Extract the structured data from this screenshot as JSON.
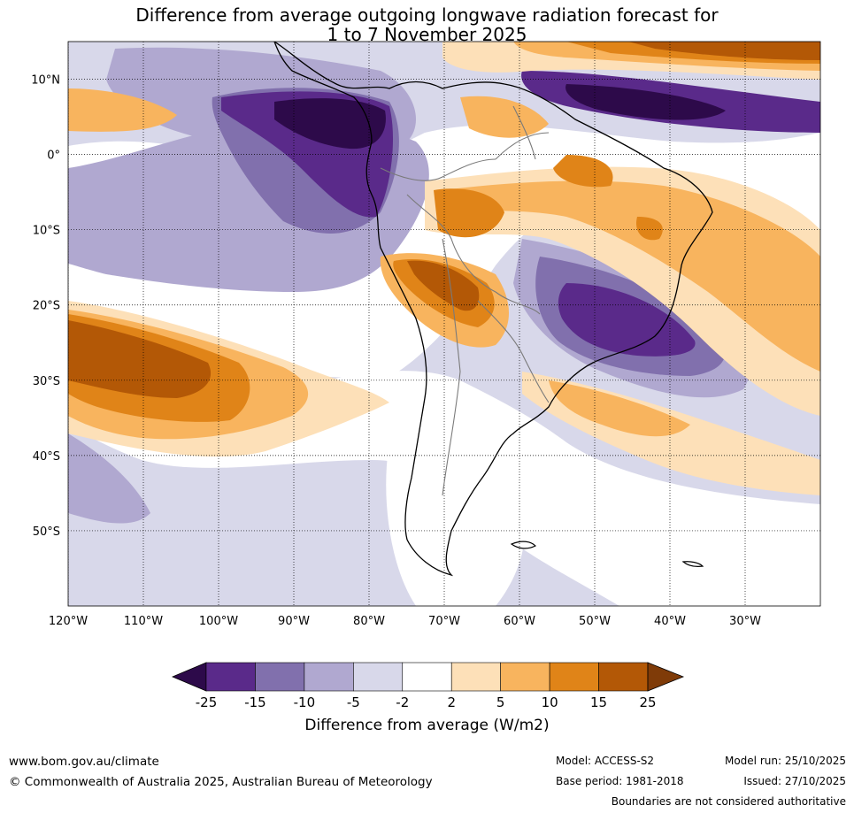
{
  "title": {
    "line1": "Difference from average outgoing longwave radiation forecast for",
    "line2": "1 to 7 November 2025"
  },
  "map": {
    "lat_labels": [
      "10°N",
      "0°",
      "10°S",
      "20°S",
      "30°S",
      "40°S",
      "50°S"
    ],
    "lat_values": [
      10,
      0,
      -10,
      -20,
      -30,
      -40,
      -50
    ],
    "lon_labels": [
      "120°W",
      "110°W",
      "100°W",
      "90°W",
      "80°W",
      "70°W",
      "60°W",
      "50°W",
      "40°W",
      "30°W"
    ],
    "lon_values": [
      -120,
      -110,
      -100,
      -90,
      -80,
      -70,
      -60,
      -50,
      -40,
      -30
    ],
    "lon_range": [
      -120,
      -20
    ],
    "lat_range": [
      -60,
      15
    ]
  },
  "colorbar": {
    "ticks": [
      "-25",
      "-15",
      "-10",
      "-5",
      "-2",
      "2",
      "5",
      "10",
      "15",
      "25"
    ],
    "colors": [
      "#2d0a4a",
      "#5a2a8a",
      "#8170ad",
      "#b0a8d0",
      "#d8d8ea",
      "#ffffff",
      "#fde0b8",
      "#f8b45e",
      "#e08418",
      "#b35806",
      "#7f3b08"
    ],
    "label": "Difference from average (W/m2)"
  },
  "footer": {
    "website": "www.bom.gov.au/climate",
    "copyright": "© Commonwealth of Australia 2025, Australian Bureau of Meteorology",
    "model": "Model: ACCESS-S2",
    "base_period": "Base period: 1981-2018",
    "model_run": "Model run: 25/10/2025",
    "issued": "Issued: 27/10/2025",
    "disclaimer": "Boundaries are not considered authoritative"
  }
}
